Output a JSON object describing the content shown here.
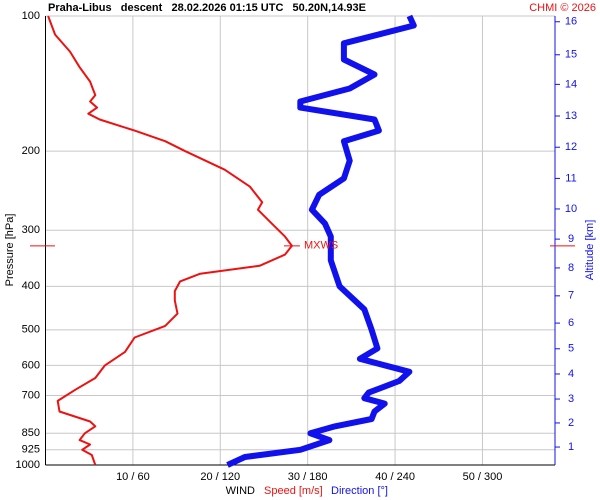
{
  "chart_data": {
    "type": "profile",
    "title": "Praha-Libus   descent   28.02.2026 01:15 UTC   50.20N,14.93E",
    "credit": "CHMI © 2026",
    "y_label": "Pressure [hPa]",
    "y2_label": "Altitude [km]",
    "x_label": "WIND",
    "log_scale_y": true,
    "ylim": [
      1000,
      100
    ],
    "yticks": [
      100,
      200,
      300,
      400,
      500,
      600,
      700,
      850,
      925,
      1000
    ],
    "xlim": [
      0,
      58.3
    ],
    "x2lim": [
      0,
      350
    ],
    "xticks": [
      {
        "value": 10,
        "label": "10 / 60"
      },
      {
        "value": 20,
        "label": "20 / 120"
      },
      {
        "value": 30,
        "label": "30 / 180"
      },
      {
        "value": 40,
        "label": "40 / 240"
      },
      {
        "value": 50,
        "label": "50 / 300"
      }
    ],
    "grid": true,
    "altitude": {
      "km": [
        1,
        2,
        3,
        4,
        5,
        6,
        7,
        8,
        9,
        10,
        11,
        12,
        13,
        14,
        15,
        16
      ],
      "pressure": [
        912,
        806,
        713,
        627,
        551,
        483,
        420,
        364,
        314,
        269,
        230,
        196,
        167,
        142,
        122,
        103
      ]
    },
    "max_wind": {
      "label": "MXWS",
      "pressure": 325,
      "speed": 28.2
    },
    "series": [
      {
        "name": "Speed [m/s]",
        "color": "#ee1111",
        "axis": "x",
        "width": 2,
        "pressure": [
          100,
          110,
          120,
          130,
          140,
          145,
          150,
          155,
          160,
          165,
          170,
          180,
          190,
          200,
          220,
          240,
          260,
          270,
          290,
          310,
          325,
          340,
          360,
          375,
          390,
          410,
          430,
          460,
          490,
          520,
          560,
          600,
          640,
          680,
          720,
          760,
          800,
          820,
          850,
          880,
          900,
          925,
          950,
          1000
        ],
        "values": [
          0.3,
          1.1,
          2.8,
          3.9,
          5.1,
          5.4,
          5.7,
          5.1,
          5.9,
          4.9,
          6.2,
          10.2,
          13.7,
          16,
          20.5,
          23.4,
          24.8,
          24.3,
          25.9,
          27.4,
          28.2,
          27.4,
          24.5,
          17.7,
          15.4,
          14.8,
          14.8,
          15.1,
          13.7,
          10.2,
          9.1,
          6.8,
          5.7,
          3.4,
          1.4,
          1.6,
          5.1,
          5.7,
          4.5,
          3.9,
          5.1,
          4.2,
          5.3,
          5.7
        ]
      },
      {
        "name": "Direction [°]",
        "color": "#1111ee",
        "axis": "x2",
        "width": 6,
        "pressure": [
          100,
          105,
          115,
          125,
          135,
          145,
          155,
          160,
          170,
          180,
          190,
          210,
          230,
          250,
          270,
          290,
          310,
          350,
          400,
          450,
          500,
          550,
          580,
          620,
          650,
          690,
          710,
          730,
          760,
          790,
          820,
          850,
          880,
          925,
          960,
          1000
        ],
        "values": [
          250,
          253,
          205,
          205,
          226,
          209,
          175,
          175,
          226,
          229,
          205,
          209,
          205,
          188,
          183,
          192,
          196,
          196,
          202,
          219,
          224,
          228,
          216,
          250,
          243,
          222,
          219,
          233,
          226,
          224,
          199,
          182,
          195,
          175,
          137,
          125
        ]
      }
    ]
  }
}
